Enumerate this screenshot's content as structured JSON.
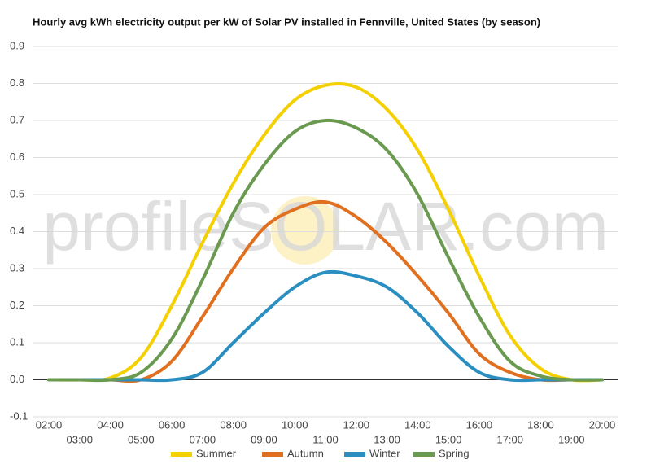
{
  "chart_data": {
    "type": "line",
    "title": "Hourly avg kWh electricity output per kW of Solar PV installed in Fennville, United States (by season)",
    "watermark": "profileSOLAR.com",
    "categories": [
      "02:00",
      "03:00",
      "04:00",
      "05:00",
      "06:00",
      "07:00",
      "08:00",
      "09:00",
      "10:00",
      "11:00",
      "12:00",
      "13:00",
      "14:00",
      "15:00",
      "16:00",
      "17:00",
      "18:00",
      "19:00",
      "20:00"
    ],
    "series": [
      {
        "name": "Summer",
        "color": "#f5d000",
        "values": [
          0,
          0,
          0.005,
          0.06,
          0.2,
          0.37,
          0.53,
          0.66,
          0.755,
          0.795,
          0.79,
          0.73,
          0.62,
          0.46,
          0.28,
          0.12,
          0.03,
          0,
          0
        ]
      },
      {
        "name": "Autumn",
        "color": "#e07020",
        "values": [
          0,
          0,
          0,
          0,
          0.05,
          0.17,
          0.3,
          0.41,
          0.46,
          0.48,
          0.44,
          0.37,
          0.28,
          0.18,
          0.07,
          0.02,
          0,
          0,
          0
        ]
      },
      {
        "name": "Winter",
        "color": "#2a8fc0",
        "values": [
          0,
          0,
          0,
          0,
          0,
          0.02,
          0.1,
          0.18,
          0.25,
          0.29,
          0.28,
          0.25,
          0.18,
          0.09,
          0.02,
          0,
          0,
          0,
          0
        ]
      },
      {
        "name": "Spring",
        "color": "#6a9a50",
        "values": [
          0,
          0,
          0,
          0.02,
          0.11,
          0.27,
          0.45,
          0.58,
          0.67,
          0.7,
          0.68,
          0.62,
          0.5,
          0.33,
          0.17,
          0.05,
          0.01,
          0,
          0
        ]
      }
    ],
    "ylim": [
      -0.1,
      0.9
    ],
    "yticks": [
      -0.1,
      {
        "value": 0,
        "label": "0.0"
      },
      0.1,
      0.2,
      0.3,
      0.4,
      0.5,
      0.6,
      0.7,
      0.8,
      0.9
    ],
    "grid": true
  }
}
